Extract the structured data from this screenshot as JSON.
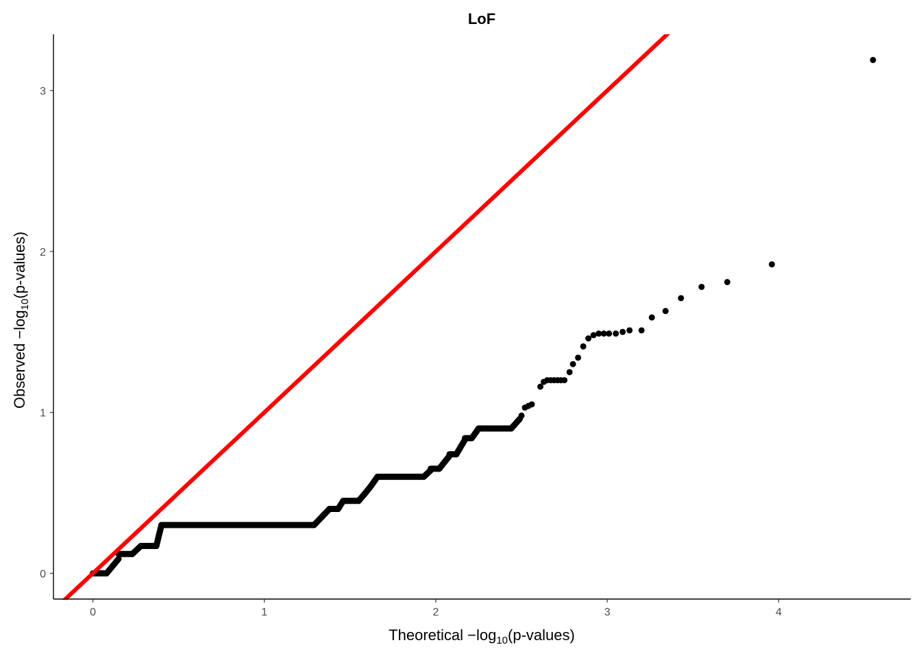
{
  "chart_data": {
    "type": "scatter",
    "title": "LoF",
    "xlabel": {
      "prefix": "Theoretical −log",
      "sub": "10",
      "suffix": "(p-values)"
    },
    "ylabel": {
      "prefix": "Observed −log",
      "sub": "10",
      "suffix": "(p-values)"
    },
    "xlim": [
      -0.23,
      4.77
    ],
    "ylim": [
      -0.16,
      3.35
    ],
    "x_ticks": [
      0,
      1,
      2,
      3,
      4
    ],
    "y_ticks": [
      0,
      1,
      2,
      3
    ],
    "grid": false,
    "reference_line": {
      "slope": 1,
      "intercept": 0,
      "color": "#ff0000"
    },
    "point_color": "#000000",
    "segments": [
      {
        "x0": 0.0,
        "x1": 0.08,
        "y": 0.0
      },
      {
        "x0": 0.08,
        "x1": 0.15,
        "y0": 0.0,
        "y1": 0.09
      },
      {
        "x0": 0.15,
        "x1": 0.23,
        "y": 0.12
      },
      {
        "x0": 0.23,
        "x1": 0.28,
        "y0": 0.12,
        "y1": 0.17
      },
      {
        "x0": 0.28,
        "x1": 0.37,
        "y": 0.17
      },
      {
        "x0": 0.37,
        "x1": 0.4,
        "y0": 0.17,
        "y1": 0.3
      },
      {
        "x0": 0.4,
        "x1": 1.29,
        "y": 0.3
      },
      {
        "x0": 1.29,
        "x1": 1.38,
        "y0": 0.3,
        "y1": 0.4
      },
      {
        "x0": 1.38,
        "x1": 1.43,
        "y": 0.4
      },
      {
        "x0": 1.43,
        "x1": 1.46,
        "y0": 0.4,
        "y1": 0.45
      },
      {
        "x0": 1.46,
        "x1": 1.55,
        "y": 0.45
      },
      {
        "x0": 1.55,
        "x1": 1.59,
        "y0": 0.45,
        "y1": 0.5
      },
      {
        "x0": 1.59,
        "x1": 1.62,
        "y0": 0.5,
        "y1": 0.54
      },
      {
        "x0": 1.62,
        "x1": 1.66,
        "y0": 0.54,
        "y1": 0.6
      },
      {
        "x0": 1.66,
        "x1": 1.93,
        "y": 0.6
      },
      {
        "x0": 1.93,
        "x1": 1.97,
        "y0": 0.6,
        "y1": 0.64
      },
      {
        "x0": 1.97,
        "x1": 2.02,
        "y": 0.65
      },
      {
        "x0": 2.02,
        "x1": 2.08,
        "y0": 0.65,
        "y1": 0.73
      },
      {
        "x0": 2.08,
        "x1": 2.12,
        "y": 0.74
      },
      {
        "x0": 2.12,
        "x1": 2.17,
        "y0": 0.74,
        "y1": 0.83
      },
      {
        "x0": 2.17,
        "x1": 2.21,
        "y": 0.84
      },
      {
        "x0": 2.21,
        "x1": 2.25,
        "y0": 0.84,
        "y1": 0.9
      },
      {
        "x0": 2.25,
        "x1": 2.44,
        "y": 0.9
      },
      {
        "x0": 2.44,
        "x1": 2.49,
        "y0": 0.9,
        "y1": 0.96
      }
    ],
    "points": [
      {
        "x": 2.5,
        "y": 0.98
      },
      {
        "x": 2.52,
        "y": 1.03
      },
      {
        "x": 2.54,
        "y": 1.04
      },
      {
        "x": 2.56,
        "y": 1.05
      },
      {
        "x": 2.61,
        "y": 1.16
      },
      {
        "x": 2.63,
        "y": 1.19
      },
      {
        "x": 2.65,
        "y": 1.2
      },
      {
        "x": 2.67,
        "y": 1.2
      },
      {
        "x": 2.69,
        "y": 1.2
      },
      {
        "x": 2.71,
        "y": 1.2
      },
      {
        "x": 2.73,
        "y": 1.2
      },
      {
        "x": 2.75,
        "y": 1.2
      },
      {
        "x": 2.78,
        "y": 1.25
      },
      {
        "x": 2.8,
        "y": 1.3
      },
      {
        "x": 2.83,
        "y": 1.34
      },
      {
        "x": 2.86,
        "y": 1.41
      },
      {
        "x": 2.89,
        "y": 1.46
      },
      {
        "x": 2.92,
        "y": 1.48
      },
      {
        "x": 2.95,
        "y": 1.49
      },
      {
        "x": 2.98,
        "y": 1.49
      },
      {
        "x": 3.01,
        "y": 1.49
      },
      {
        "x": 3.05,
        "y": 1.49
      },
      {
        "x": 3.09,
        "y": 1.5
      },
      {
        "x": 3.13,
        "y": 1.51
      },
      {
        "x": 3.2,
        "y": 1.51
      },
      {
        "x": 3.26,
        "y": 1.59
      },
      {
        "x": 3.34,
        "y": 1.63
      },
      {
        "x": 3.43,
        "y": 1.71
      },
      {
        "x": 3.55,
        "y": 1.78
      },
      {
        "x": 3.7,
        "y": 1.81
      },
      {
        "x": 3.96,
        "y": 1.92
      },
      {
        "x": 4.55,
        "y": 3.19
      }
    ]
  }
}
